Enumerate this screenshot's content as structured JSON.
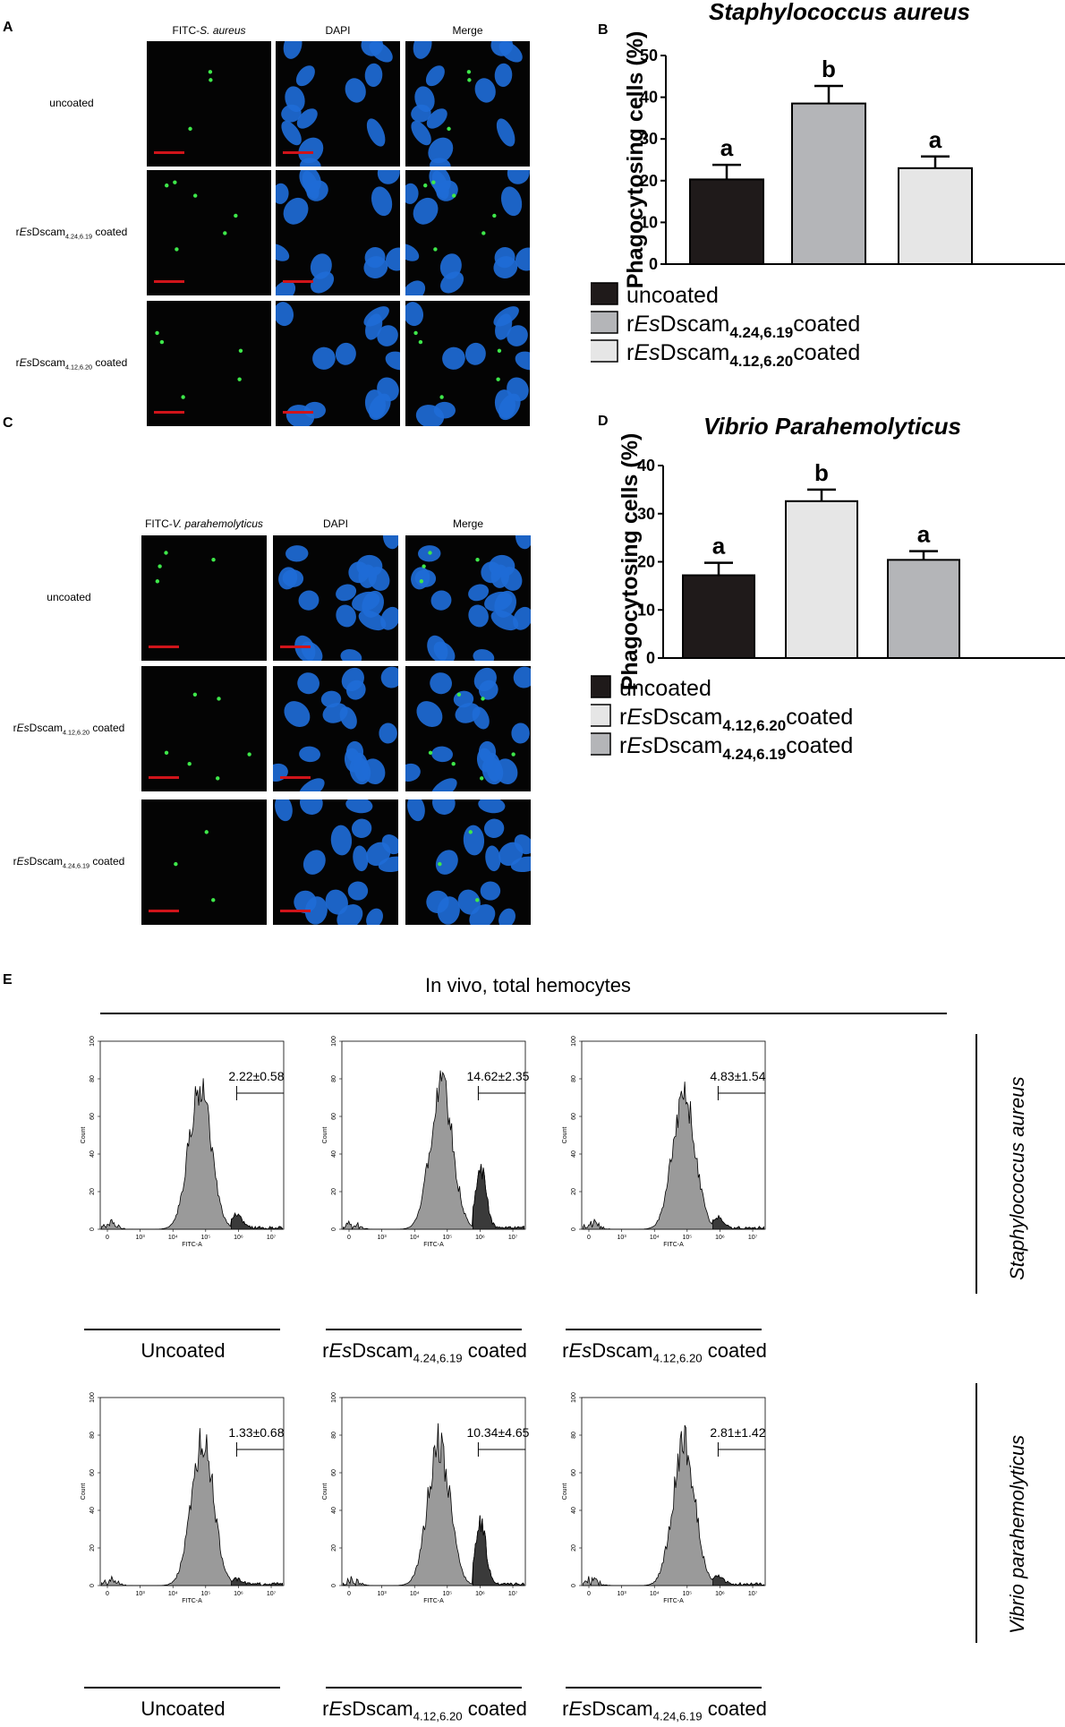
{
  "panelA": {
    "letter": "A",
    "col_headers": [
      {
        "prefix": "FITC-",
        "italic": "S. aureus"
      },
      {
        "prefix": "DAPI",
        "italic": ""
      },
      {
        "prefix": "Merge",
        "italic": ""
      }
    ],
    "rows": [
      {
        "pre": "",
        "ital": "",
        "name": "uncoated",
        "sub": "",
        "post": ""
      },
      {
        "pre": "r",
        "ital": "Es",
        "name": "Dscam",
        "sub": "4.24,6.19",
        "post": " coated"
      },
      {
        "pre": "r",
        "ital": "Es",
        "name": "Dscam",
        "sub": "4.12,6.20",
        "post": " coated"
      }
    ]
  },
  "panelC": {
    "letter": "C",
    "col_headers": [
      {
        "prefix": "FITC-",
        "italic": "V. parahemolyticus"
      },
      {
        "prefix": "DAPI",
        "italic": ""
      },
      {
        "prefix": "Merge",
        "italic": ""
      }
    ],
    "rows": [
      {
        "pre": "",
        "ital": "",
        "name": "uncoated",
        "sub": "",
        "post": ""
      },
      {
        "pre": "r",
        "ital": "Es",
        "name": "Dscam",
        "sub": "4.12,6.20",
        "post": " coated"
      },
      {
        "pre": "r",
        "ital": "Es",
        "name": "Dscam",
        "sub": "4.24,6.19",
        "post": " coated"
      }
    ]
  },
  "colors": {
    "scalebar": "#d0141a",
    "nucleus": "#1e6bd6",
    "bacteria": "#3ee84a",
    "dark_bar": "#1f1a1a",
    "mid_bar": "#b4b5b8",
    "light_bar": "#e6e6e6",
    "hist_fill": "#9a9a9a",
    "hist_gate_fill": "#3a3a3a"
  },
  "chart_data": [
    {
      "id": "B",
      "letter": "B",
      "type": "bar",
      "title": "Staphylococcus aureus",
      "ylabel": "Phagocytosing cells (%)",
      "ylim": [
        0,
        50
      ],
      "yticks": [
        0,
        10,
        20,
        30,
        40,
        50
      ],
      "grid": false,
      "legend_position": "bottom",
      "categories": [
        "uncoated",
        "rEsDscam4.24,6.19coated",
        "rEsDscam4.12,6.20coated"
      ],
      "values": [
        20.3,
        38.5,
        23.0
      ],
      "error": [
        3.5,
        4.2,
        2.8
      ],
      "letters": [
        "a",
        "b",
        "a"
      ],
      "bar_colors": [
        "#1f1a1a",
        "#b4b5b8",
        "#e6e6e6"
      ],
      "legend": [
        {
          "pre": "",
          "ital": "",
          "name": "uncoated",
          "sub": "",
          "post": ""
        },
        {
          "pre": "r",
          "ital": "Es",
          "name": "Dscam",
          "sub": "4.24,6.19",
          "post": "coated"
        },
        {
          "pre": "r",
          "ital": "Es",
          "name": "Dscam",
          "sub": "4.12,6.20",
          "post": "coated"
        }
      ]
    },
    {
      "id": "D",
      "letter": "D",
      "type": "bar",
      "title": "Vibrio Parahemolyticus",
      "ylabel": "Phagocytosing cells (%)",
      "ylim": [
        0,
        40
      ],
      "yticks": [
        0,
        10,
        20,
        30,
        40
      ],
      "grid": false,
      "legend_position": "bottom",
      "categories": [
        "uncoated",
        "rEsDscam4.12,6.20coated",
        "rEsDscam4.24,6.19coated"
      ],
      "values": [
        17.2,
        32.6,
        20.4
      ],
      "error": [
        2.6,
        2.4,
        1.8
      ],
      "letters": [
        "a",
        "b",
        "a"
      ],
      "bar_colors": [
        "#1f1a1a",
        "#e6e6e6",
        "#b4b5b8"
      ],
      "legend": [
        {
          "pre": "",
          "ital": "",
          "name": "uncoated",
          "sub": "",
          "post": ""
        },
        {
          "pre": "r",
          "ital": "Es",
          "name": "Dscam",
          "sub": "4.12,6.20",
          "post": "coated"
        },
        {
          "pre": "r",
          "ital": "Es",
          "name": "Dscam",
          "sub": "4.24,6.19",
          "post": "coated"
        }
      ]
    },
    {
      "id": "E",
      "letter": "E",
      "type": "area",
      "title": "In vivo, total hemocytes",
      "xlabel": "FITC-A",
      "ylabel": "Count",
      "xscale": "log",
      "xlim": [
        0,
        7
      ],
      "xticks": [
        "0",
        "10³",
        "10⁴",
        "10⁵",
        "10⁶",
        "10⁷"
      ],
      "ylim": [
        0,
        100
      ],
      "yticks": [
        0,
        20,
        40,
        60,
        80,
        100
      ],
      "gate_start_log10": 5.0,
      "groups": [
        {
          "side_label": "Staphylococcus aureus",
          "plots": [
            {
              "caption": {
                "pre": "",
                "ital": "",
                "name": "Uncoated",
                "sub": "",
                "post": ""
              },
              "gate_value": "2.22±0.58",
              "main_peak_log10": 3.8,
              "main_height": 82,
              "second_peak_log10": 5.2,
              "second_height": 8
            },
            {
              "caption": {
                "pre": "r",
                "ital": "Es",
                "name": "Dscam",
                "sub": "4.24,6.19",
                "post": " coated"
              },
              "gate_value": "14.62±2.35",
              "main_peak_log10": 3.8,
              "main_height": 84,
              "second_peak_log10": 5.3,
              "second_height": 36
            },
            {
              "caption": {
                "pre": "r",
                "ital": "Es",
                "name": "Dscam",
                "sub": "4.12,6.20",
                "post": " coated"
              },
              "gate_value": "4.83±1.54",
              "main_peak_log10": 3.9,
              "main_height": 80,
              "second_peak_log10": 5.2,
              "second_height": 6
            }
          ]
        },
        {
          "side_label": "Vibrio parahemolyticus",
          "plots": [
            {
              "caption": {
                "pre": "",
                "ital": "",
                "name": "Uncoated",
                "sub": "",
                "post": ""
              },
              "gate_value": "1.33±0.68",
              "main_peak_log10": 3.9,
              "main_height": 85,
              "second_peak_log10": 5.2,
              "second_height": 3
            },
            {
              "caption": {
                "pre": "r",
                "ital": "Es",
                "name": "Dscam",
                "sub": "4.12,6.20",
                "post": " coated"
              },
              "gate_value": "10.34±4.65",
              "main_peak_log10": 3.7,
              "main_height": 82,
              "second_peak_log10": 5.3,
              "second_height": 36
            },
            {
              "caption": {
                "pre": "r",
                "ital": "Es",
                "name": "Dscam",
                "sub": "4.24,6.19",
                "post": " coated"
              },
              "gate_value": "2.81±1.42",
              "main_peak_log10": 3.9,
              "main_height": 82,
              "second_peak_log10": 5.2,
              "second_height": 5
            }
          ]
        }
      ]
    }
  ]
}
